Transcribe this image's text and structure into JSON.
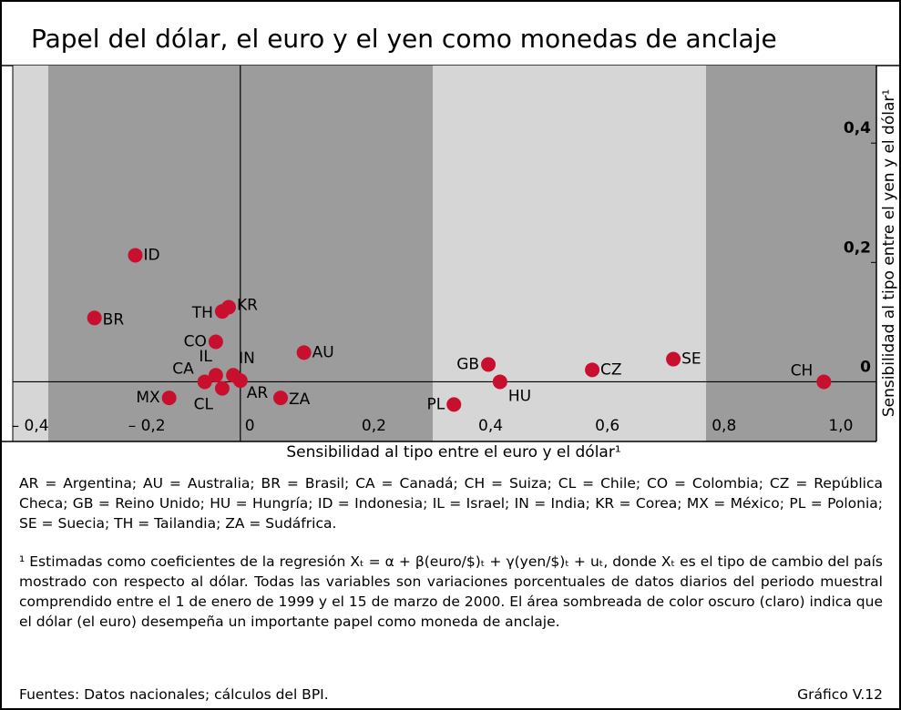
{
  "chart_data": {
    "type": "scatter",
    "title": "Papel del dólar, el euro y el yen como monedas de anclaje",
    "xlabel": "Sensibilidad al tipo entre el euro y el dólar¹",
    "ylabel": "Sensibilidad al tipo entre el yen y el dólar¹",
    "color": "#c8102e",
    "labels": [
      "ID",
      "BR",
      "TH",
      "KR",
      "CO",
      "AU",
      "IL",
      "CA",
      "IN",
      "CL",
      "AR",
      "MX",
      "ZA",
      "GB",
      "HU",
      "PL",
      "CZ",
      "SE",
      "CH"
    ],
    "x": [
      -0.18,
      -0.25,
      -0.031,
      -0.02,
      -0.042,
      0.109,
      -0.042,
      -0.061,
      -0.012,
      -0.031,
      0.0,
      -0.122,
      0.069,
      0.425,
      0.445,
      0.366,
      0.603,
      0.742,
      1.0
    ],
    "values": [
      0.212,
      0.107,
      0.118,
      0.125,
      0.067,
      0.049,
      0.011,
      0.0,
      0.011,
      -0.011,
      0.002,
      -0.027,
      -0.027,
      0.029,
      0.0,
      -0.038,
      0.02,
      0.038,
      0.0
    ],
    "xlim": [
      -0.39,
      1.09
    ],
    "ylim": [
      -0.1,
      0.53
    ],
    "xticks": [
      {
        "value": -0.4,
        "label": "– 0,4"
      },
      {
        "value": -0.2,
        "label": "– 0,2"
      },
      0,
      {
        "value": 0.2,
        "label": "0,2"
      },
      {
        "value": 0.4,
        "label": "0,4"
      },
      {
        "value": 0.6,
        "label": "0,6"
      },
      {
        "value": 0.8,
        "label": "0,8"
      },
      {
        "value": 1.0,
        "label": "1,0"
      }
    ],
    "yticks": [
      0,
      {
        "value": 0.2,
        "label": "0,2"
      },
      {
        "value": 0.4,
        "label": "0,4"
      }
    ],
    "legend_text": "AR = Argentina;  AU = Australia;  BR = Brasil;  CA = Canadá;  CH = Suiza;  CL = Chile;  CO = Colombia;  CZ = República Checa;  GB = Reino Unido;  HU = Hungría;  ID = Indonesia;  IL = Israel; IN = India; KR = Corea; MX = México; PL = Polonia; SE = Suecia; TH = Tailandia; ZA = Sudáfrica.",
    "footnote": "¹ Estimadas como coeficientes de la regresión Xₜ = α + β(euro/$)ₜ + γ(yen/$)ₜ + uₜ, donde Xₜ es el tipo de cambio del país mostrado con respecto al dólar. Todas las variables son variaciones porcentuales de datos diarios del periodo muestral comprendido entre el 1 de enero de 1999 y el 15 de marzo de 2000. El área sombreada de color oscuro (claro) indica que el dólar (el euro) desempeña un importante papel como moneda de anclaje.",
    "source": "Fuentes: Datos nacionales; cálculos del BPI.",
    "chart_number": "Gráfico V.12"
  }
}
